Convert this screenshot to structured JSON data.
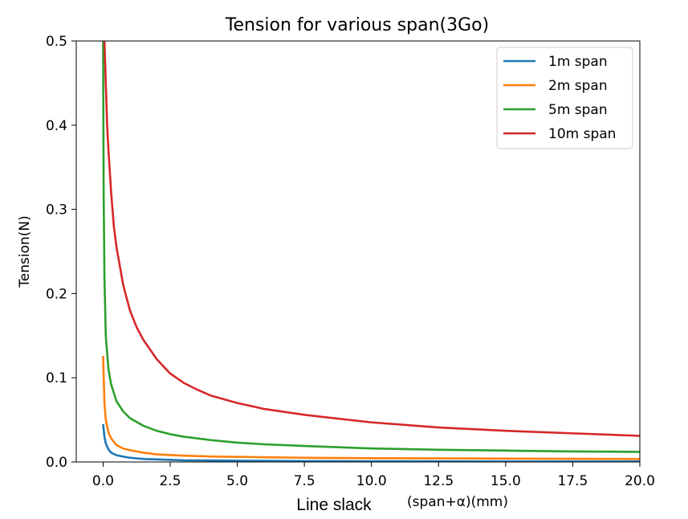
{
  "chart_data": {
    "type": "line",
    "title": "Tension for various span(3Go)",
    "xlabel": "(span+α)(mm)",
    "xlabel_overlay": "Line slack",
    "ylabel": "Tension(N)",
    "xlim": [
      -1.0,
      20.0
    ],
    "ylim": [
      0.0,
      0.5
    ],
    "x_ticks": [
      "0.0",
      "2.5",
      "5.0",
      "7.5",
      "10.0",
      "12.5",
      "15.0",
      "17.5",
      "20.0"
    ],
    "x_tick_values": [
      0.0,
      2.5,
      5.0,
      7.5,
      10.0,
      12.5,
      15.0,
      17.5,
      20.0
    ],
    "y_ticks": [
      "0.0",
      "0.1",
      "0.2",
      "0.3",
      "0.4",
      "0.5"
    ],
    "y_tick_values": [
      0.0,
      0.1,
      0.2,
      0.3,
      0.4,
      0.5
    ],
    "grid": false,
    "legend_position": "top-right",
    "series": [
      {
        "name": "1m span",
        "color": "#1f77b4",
        "points": [
          [
            0.0,
            0.045
          ],
          [
            0.05,
            0.03
          ],
          [
            0.1,
            0.022
          ],
          [
            0.2,
            0.015
          ],
          [
            0.3,
            0.011
          ],
          [
            0.5,
            0.008
          ],
          [
            0.8,
            0.006
          ],
          [
            1.0,
            0.005
          ],
          [
            1.5,
            0.0035
          ],
          [
            2.0,
            0.003
          ],
          [
            3.0,
            0.002
          ],
          [
            5.0,
            0.0015
          ],
          [
            7.5,
            0.001
          ],
          [
            10.0,
            0.0008
          ],
          [
            15.0,
            0.0006
          ],
          [
            20.0,
            0.0005
          ]
        ]
      },
      {
        "name": "2m span",
        "color": "#ff7f0e",
        "points": [
          [
            0.0,
            0.126
          ],
          [
            0.05,
            0.07
          ],
          [
            0.1,
            0.05
          ],
          [
            0.2,
            0.035
          ],
          [
            0.3,
            0.028
          ],
          [
            0.5,
            0.02
          ],
          [
            0.75,
            0.016
          ],
          [
            1.0,
            0.014
          ],
          [
            1.5,
            0.011
          ],
          [
            2.0,
            0.009
          ],
          [
            3.0,
            0.0075
          ],
          [
            4.0,
            0.0065
          ],
          [
            5.0,
            0.006
          ],
          [
            7.5,
            0.005
          ],
          [
            10.0,
            0.0045
          ],
          [
            15.0,
            0.004
          ],
          [
            20.0,
            0.0035
          ]
        ]
      },
      {
        "name": "5m span",
        "color": "#2ca02c",
        "points": [
          [
            0.0,
            0.5
          ],
          [
            0.02,
            0.32
          ],
          [
            0.05,
            0.22
          ],
          [
            0.1,
            0.15
          ],
          [
            0.2,
            0.11
          ],
          [
            0.3,
            0.092
          ],
          [
            0.5,
            0.072
          ],
          [
            0.75,
            0.06
          ],
          [
            1.0,
            0.052
          ],
          [
            1.5,
            0.043
          ],
          [
            2.0,
            0.037
          ],
          [
            2.5,
            0.033
          ],
          [
            3.0,
            0.03
          ],
          [
            4.0,
            0.026
          ],
          [
            5.0,
            0.023
          ],
          [
            6.0,
            0.021
          ],
          [
            7.5,
            0.019
          ],
          [
            10.0,
            0.016
          ],
          [
            12.5,
            0.0145
          ],
          [
            15.0,
            0.0135
          ],
          [
            17.5,
            0.0125
          ],
          [
            20.0,
            0.012
          ]
        ]
      },
      {
        "name": "10m span",
        "color": "#d62728",
        "points": [
          [
            0.05,
            0.5
          ],
          [
            0.1,
            0.45
          ],
          [
            0.15,
            0.4
          ],
          [
            0.2,
            0.37
          ],
          [
            0.3,
            0.32
          ],
          [
            0.4,
            0.28
          ],
          [
            0.5,
            0.255
          ],
          [
            0.75,
            0.21
          ],
          [
            1.0,
            0.18
          ],
          [
            1.25,
            0.16
          ],
          [
            1.5,
            0.145
          ],
          [
            2.0,
            0.122
          ],
          [
            2.5,
            0.105
          ],
          [
            3.0,
            0.094
          ],
          [
            3.5,
            0.086
          ],
          [
            4.0,
            0.079
          ],
          [
            5.0,
            0.07
          ],
          [
            6.0,
            0.063
          ],
          [
            7.5,
            0.056
          ],
          [
            10.0,
            0.047
          ],
          [
            12.5,
            0.041
          ],
          [
            15.0,
            0.037
          ],
          [
            17.5,
            0.034
          ],
          [
            20.0,
            0.031
          ]
        ]
      }
    ]
  }
}
